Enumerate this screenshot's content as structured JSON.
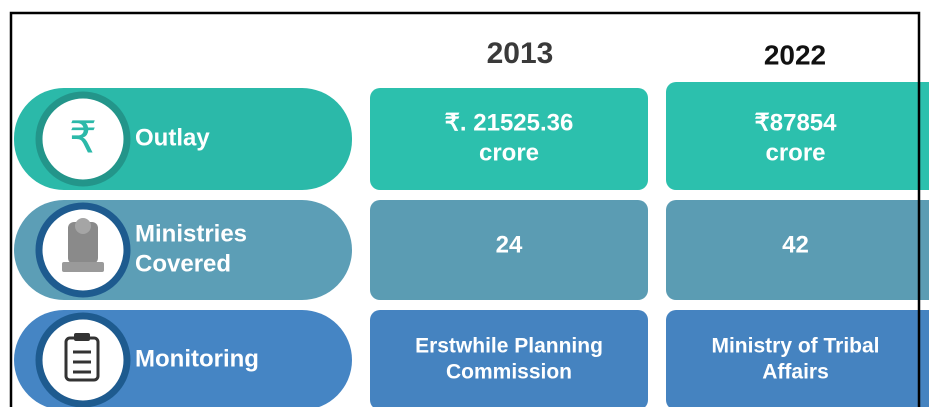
{
  "header": {
    "columns": [
      "2013",
      "2022"
    ]
  },
  "rows": [
    {
      "label": [
        "Outlay"
      ],
      "icon": "₹",
      "values": [
        [
          "₹. 21525.36",
          "crore"
        ],
        [
          "₹87854",
          "crore"
        ]
      ]
    },
    {
      "label": [
        "Ministries",
        "Covered"
      ],
      "values": [
        [
          "24"
        ],
        [
          "42"
        ]
      ]
    },
    {
      "label": [
        "Monitoring"
      ],
      "values": [
        [
          "Erstwhile Planning",
          "Commission"
        ],
        [
          "Ministry of Tribal",
          "Affairs"
        ]
      ]
    }
  ]
}
